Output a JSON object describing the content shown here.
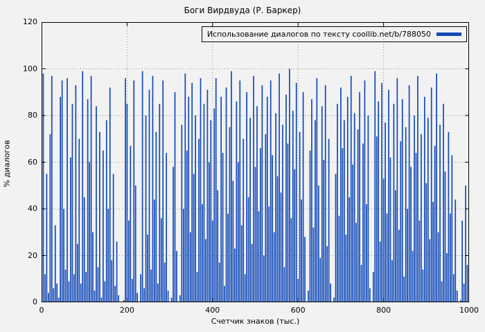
{
  "chart_data": {
    "type": "bar",
    "style": "impulses",
    "title": "Боги Вирдвуда (Р. Баркер)",
    "legend_label": "Использование диалогов по тексту coollib.net/b/788050",
    "xlabel": "Счетчик знаков (тыс.)",
    "ylabel": "% диалогов",
    "xlim": [
      0,
      1000
    ],
    "ylim": [
      0,
      120
    ],
    "xticks": [
      0,
      200,
      400,
      600,
      800,
      1000
    ],
    "yticks": [
      0,
      20,
      40,
      60,
      80,
      100,
      120
    ],
    "grid": true,
    "legend_position": "top-right",
    "series_color": "#1149b8",
    "background_color": "#f2f2f2",
    "grid_color": "#8a8a8a",
    "x_start": 0,
    "x_step": 4,
    "values": [
      75,
      98,
      12,
      55,
      4,
      72,
      97,
      6,
      33,
      8,
      2,
      88,
      95,
      40,
      14,
      96,
      9,
      62,
      85,
      12,
      93,
      25,
      70,
      8,
      99,
      45,
      13,
      87,
      60,
      97,
      30,
      5,
      84,
      15,
      73,
      2,
      65,
      9,
      78,
      40,
      92,
      18,
      55,
      7,
      26,
      3,
      0,
      0,
      1,
      96,
      85,
      35,
      67,
      10,
      95,
      50,
      4,
      0,
      12,
      99,
      6,
      80,
      29,
      91,
      14,
      97,
      44,
      73,
      8,
      85,
      36,
      95,
      17,
      64,
      5,
      0,
      2,
      58,
      90,
      22,
      0,
      3,
      76,
      40,
      98,
      65,
      88,
      30,
      94,
      55,
      80,
      13,
      70,
      96,
      42,
      85,
      27,
      91,
      60,
      78,
      35,
      83,
      96,
      48,
      17,
      88,
      64,
      7,
      92,
      38,
      75,
      99,
      52,
      23,
      86,
      60,
      95,
      33,
      70,
      12,
      90,
      45,
      79,
      25,
      97,
      58,
      84,
      39,
      66,
      93,
      20,
      72,
      88,
      41,
      95,
      63,
      30,
      81,
      54,
      98,
      47,
      76,
      15,
      89,
      68,
      100,
      36,
      82,
      57,
      94,
      10,
      73,
      44,
      90,
      28,
      0,
      5,
      65,
      87,
      32,
      78,
      96,
      50,
      19,
      84,
      61,
      93,
      24,
      70,
      8,
      0,
      2,
      55,
      85,
      37,
      92,
      66,
      78,
      29,
      88,
      45,
      97,
      59,
      81,
      34,
      74,
      90,
      16,
      68,
      95,
      42,
      80,
      6,
      0,
      13,
      99,
      71,
      86,
      26,
      94,
      53,
      77,
      38,
      91,
      62,
      18,
      85,
      48,
      96,
      31,
      69,
      87,
      11,
      75,
      40,
      93,
      58,
      22,
      80,
      64,
      97,
      35,
      72,
      14,
      88,
      51,
      79,
      27,
      92,
      43,
      67,
      98,
      30,
      76,
      9,
      85,
      56,
      21,
      73,
      38,
      63,
      12,
      44,
      5,
      0,
      1,
      35,
      8,
      50,
      16,
      83
    ]
  }
}
